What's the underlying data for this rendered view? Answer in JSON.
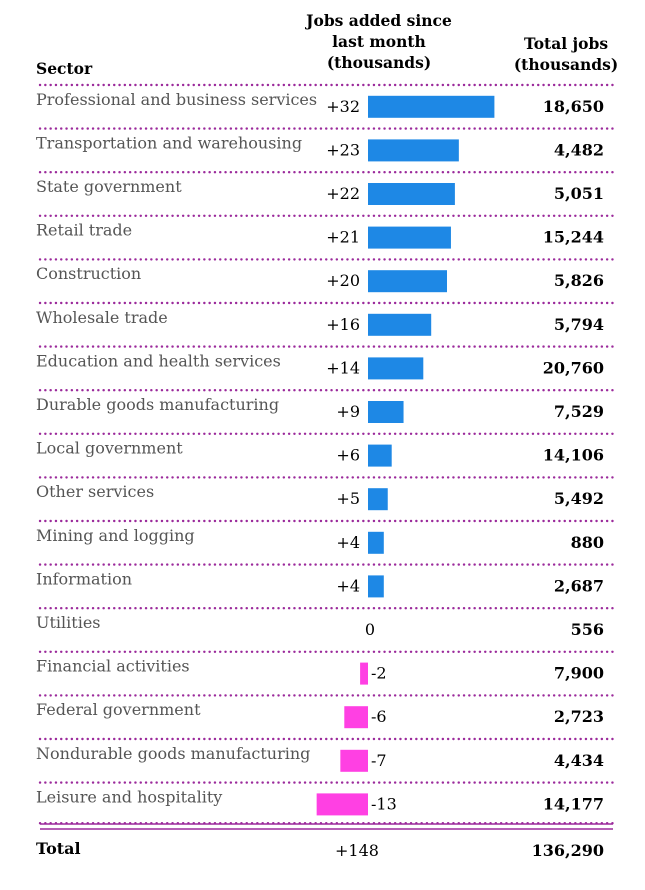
{
  "chart_data": {
    "type": "bar",
    "orientation": "horizontal",
    "headers": {
      "sector": "Sector",
      "change": [
        "Jobs added since",
        "last month",
        "(thousands)"
      ],
      "total": [
        "Total jobs",
        "(thousands)"
      ]
    },
    "categories": [
      "Professional and business services",
      "Transportation and warehousing",
      "State government",
      "Retail trade",
      "Construction",
      "Wholesale trade",
      "Education and health services",
      "Durable goods manufacturing",
      "Local government",
      "Other services",
      "Mining and logging",
      "Information",
      "Utilities",
      "Financial activities",
      "Federal government",
      "Nondurable goods manufacturing",
      "Leisure and hospitality"
    ],
    "change_labels": [
      "+32",
      "+23",
      "+22",
      "+21",
      "+20",
      "+16",
      "+14",
      "+9",
      "+6",
      "+5",
      "+4",
      "+4",
      "0",
      "-2",
      "-6",
      "-7",
      "-13"
    ],
    "values": [
      32,
      23,
      22,
      21,
      20,
      16,
      14,
      9,
      6,
      5,
      4,
      4,
      0,
      -2,
      -6,
      -7,
      -13
    ],
    "totals": [
      "18,650",
      "4,482",
      "5,051",
      "15,244",
      "5,826",
      "5,794",
      "20,760",
      "7,529",
      "14,106",
      "5,492",
      "880",
      "2,687",
      "556",
      "7,900",
      "2,723",
      "4,434",
      "14,177"
    ],
    "summary": {
      "label": "Total",
      "change": "+148",
      "total": "136,290"
    },
    "colors": {
      "positive": "#1e88e5",
      "negative": "#ff40e3",
      "divider": "#9b2a9b"
    }
  }
}
